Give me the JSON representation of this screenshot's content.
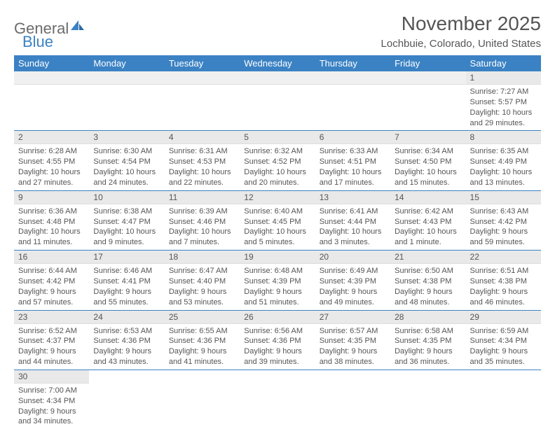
{
  "logo": {
    "part1": "General",
    "part2": "Blue"
  },
  "title": "November 2025",
  "subtitle": "Lochbuie, Colorado, United States",
  "colors": {
    "header_bg": "#3b82c4",
    "daynum_bg": "#e9e9e9",
    "text": "#555555",
    "border": "#3b82c4"
  },
  "weekdays": [
    "Sunday",
    "Monday",
    "Tuesday",
    "Wednesday",
    "Thursday",
    "Friday",
    "Saturday"
  ],
  "weeks": [
    [
      null,
      null,
      null,
      null,
      null,
      null,
      {
        "n": "1",
        "sr": "7:27 AM",
        "ss": "5:57 PM",
        "dl": "10 hours and 29 minutes."
      }
    ],
    [
      {
        "n": "2",
        "sr": "6:28 AM",
        "ss": "4:55 PM",
        "dl": "10 hours and 27 minutes."
      },
      {
        "n": "3",
        "sr": "6:30 AM",
        "ss": "4:54 PM",
        "dl": "10 hours and 24 minutes."
      },
      {
        "n": "4",
        "sr": "6:31 AM",
        "ss": "4:53 PM",
        "dl": "10 hours and 22 minutes."
      },
      {
        "n": "5",
        "sr": "6:32 AM",
        "ss": "4:52 PM",
        "dl": "10 hours and 20 minutes."
      },
      {
        "n": "6",
        "sr": "6:33 AM",
        "ss": "4:51 PM",
        "dl": "10 hours and 17 minutes."
      },
      {
        "n": "7",
        "sr": "6:34 AM",
        "ss": "4:50 PM",
        "dl": "10 hours and 15 minutes."
      },
      {
        "n": "8",
        "sr": "6:35 AM",
        "ss": "4:49 PM",
        "dl": "10 hours and 13 minutes."
      }
    ],
    [
      {
        "n": "9",
        "sr": "6:36 AM",
        "ss": "4:48 PM",
        "dl": "10 hours and 11 minutes."
      },
      {
        "n": "10",
        "sr": "6:38 AM",
        "ss": "4:47 PM",
        "dl": "10 hours and 9 minutes."
      },
      {
        "n": "11",
        "sr": "6:39 AM",
        "ss": "4:46 PM",
        "dl": "10 hours and 7 minutes."
      },
      {
        "n": "12",
        "sr": "6:40 AM",
        "ss": "4:45 PM",
        "dl": "10 hours and 5 minutes."
      },
      {
        "n": "13",
        "sr": "6:41 AM",
        "ss": "4:44 PM",
        "dl": "10 hours and 3 minutes."
      },
      {
        "n": "14",
        "sr": "6:42 AM",
        "ss": "4:43 PM",
        "dl": "10 hours and 1 minute."
      },
      {
        "n": "15",
        "sr": "6:43 AM",
        "ss": "4:42 PM",
        "dl": "9 hours and 59 minutes."
      }
    ],
    [
      {
        "n": "16",
        "sr": "6:44 AM",
        "ss": "4:42 PM",
        "dl": "9 hours and 57 minutes."
      },
      {
        "n": "17",
        "sr": "6:46 AM",
        "ss": "4:41 PM",
        "dl": "9 hours and 55 minutes."
      },
      {
        "n": "18",
        "sr": "6:47 AM",
        "ss": "4:40 PM",
        "dl": "9 hours and 53 minutes."
      },
      {
        "n": "19",
        "sr": "6:48 AM",
        "ss": "4:39 PM",
        "dl": "9 hours and 51 minutes."
      },
      {
        "n": "20",
        "sr": "6:49 AM",
        "ss": "4:39 PM",
        "dl": "9 hours and 49 minutes."
      },
      {
        "n": "21",
        "sr": "6:50 AM",
        "ss": "4:38 PM",
        "dl": "9 hours and 48 minutes."
      },
      {
        "n": "22",
        "sr": "6:51 AM",
        "ss": "4:38 PM",
        "dl": "9 hours and 46 minutes."
      }
    ],
    [
      {
        "n": "23",
        "sr": "6:52 AM",
        "ss": "4:37 PM",
        "dl": "9 hours and 44 minutes."
      },
      {
        "n": "24",
        "sr": "6:53 AM",
        "ss": "4:36 PM",
        "dl": "9 hours and 43 minutes."
      },
      {
        "n": "25",
        "sr": "6:55 AM",
        "ss": "4:36 PM",
        "dl": "9 hours and 41 minutes."
      },
      {
        "n": "26",
        "sr": "6:56 AM",
        "ss": "4:36 PM",
        "dl": "9 hours and 39 minutes."
      },
      {
        "n": "27",
        "sr": "6:57 AM",
        "ss": "4:35 PM",
        "dl": "9 hours and 38 minutes."
      },
      {
        "n": "28",
        "sr": "6:58 AM",
        "ss": "4:35 PM",
        "dl": "9 hours and 36 minutes."
      },
      {
        "n": "29",
        "sr": "6:59 AM",
        "ss": "4:34 PM",
        "dl": "9 hours and 35 minutes."
      }
    ],
    [
      {
        "n": "30",
        "sr": "7:00 AM",
        "ss": "4:34 PM",
        "dl": "9 hours and 34 minutes."
      },
      null,
      null,
      null,
      null,
      null,
      null
    ]
  ]
}
